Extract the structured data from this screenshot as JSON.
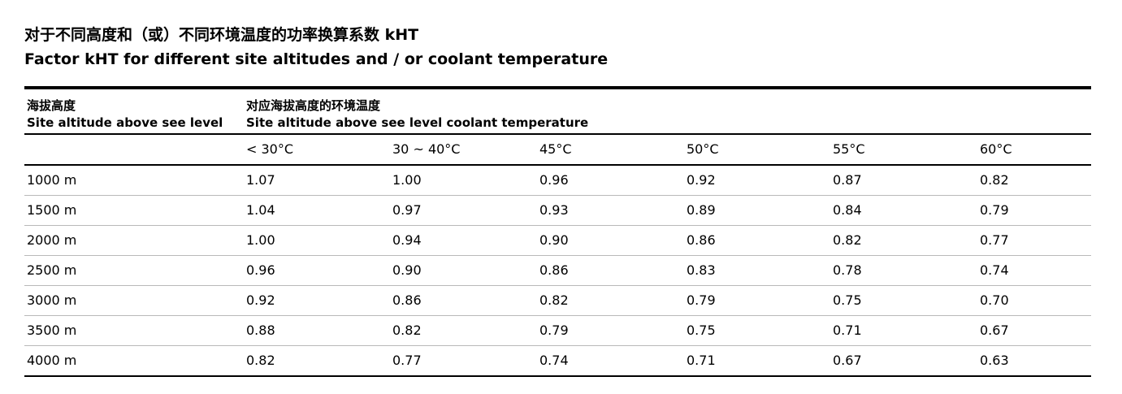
{
  "title": {
    "zh": "对于不同高度和（或）不同环境温度的功率换算系数 kHT",
    "en": "Factor kHT for different site altitudes and / or coolant temperature"
  },
  "table": {
    "header": {
      "col1_zh": "海拔高度",
      "col1_en": "Site altitude above see level",
      "col2_zh": "对应海拔高度的环境温度",
      "col2_en": "Site altitude above see level coolant temperature"
    },
    "temperatures": [
      "< 30°C",
      "30 ~ 40°C",
      "45°C",
      "50°C",
      "55°C",
      "60°C"
    ],
    "rows": [
      {
        "altitude": "1000 m",
        "values": [
          "1.07",
          "1.00",
          "0.96",
          "0.92",
          "0.87",
          "0.82"
        ]
      },
      {
        "altitude": "1500 m",
        "values": [
          "1.04",
          "0.97",
          "0.93",
          "0.89",
          "0.84",
          "0.79"
        ]
      },
      {
        "altitude": "2000 m",
        "values": [
          "1.00",
          "0.94",
          "0.90",
          "0.86",
          "0.82",
          "0.77"
        ]
      },
      {
        "altitude": "2500 m",
        "values": [
          "0.96",
          "0.90",
          "0.86",
          "0.83",
          "0.78",
          "0.74"
        ]
      },
      {
        "altitude": "3000 m",
        "values": [
          "0.92",
          "0.86",
          "0.82",
          "0.79",
          "0.75",
          "0.70"
        ]
      },
      {
        "altitude": "3500 m",
        "values": [
          "0.88",
          "0.82",
          "0.79",
          "0.75",
          "0.71",
          "0.67"
        ]
      },
      {
        "altitude": "4000 m",
        "values": [
          "0.82",
          "0.77",
          "0.74",
          "0.71",
          "0.67",
          "0.63"
        ]
      }
    ]
  }
}
